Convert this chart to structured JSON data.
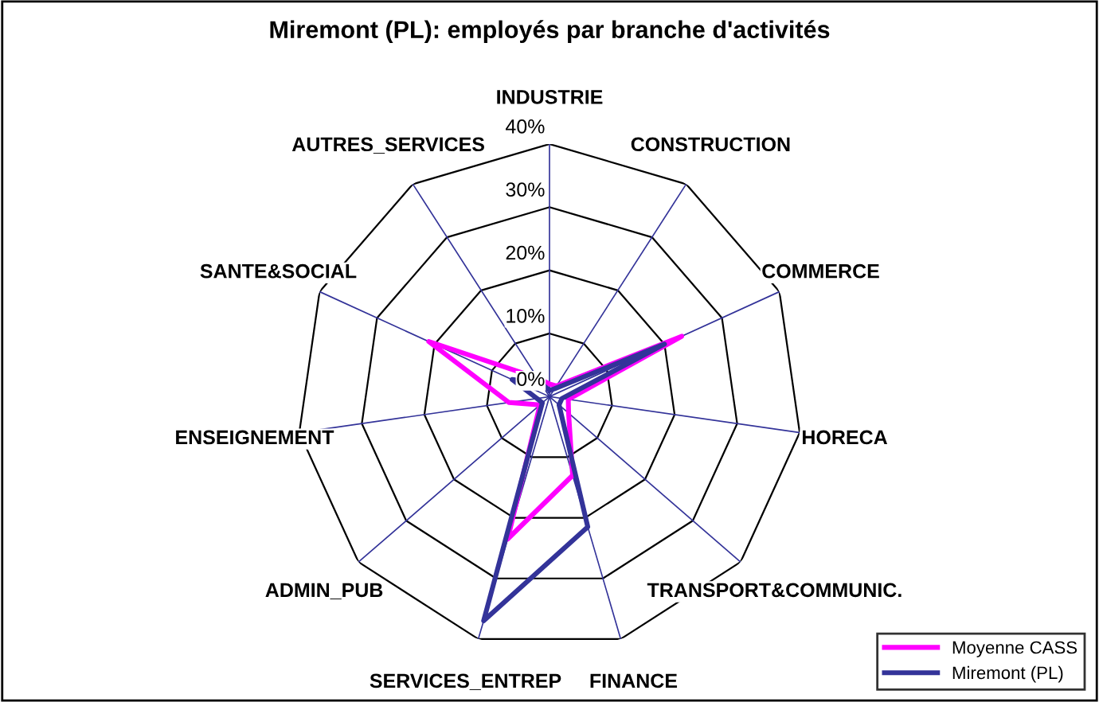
{
  "chart_data": {
    "type": "radar",
    "title": "Miremont (PL): employés par branche d'activités",
    "categories": [
      "INDUSTRIE",
      "CONSTRUCTION",
      "COMMERCE",
      "HORECA",
      "TRANSPORT&COMMUNIC.",
      "FINANCE",
      "SERVICES_ENTREP",
      "ADMIN_PUB",
      "ENSEIGNEMENT",
      "SANTE&SOCIAL",
      "AUTRES_SERVICES"
    ],
    "series": [
      {
        "name": "Moyenne CASS",
        "color": "#ff00ff",
        "values": [
          2,
          2,
          23,
          3,
          4,
          13,
          23.5,
          2,
          6.5,
          21,
          3.5
        ]
      },
      {
        "name": "Miremont (PL)",
        "color": "#333399",
        "values": [
          1,
          1.5,
          20,
          2,
          2,
          21.5,
          37,
          1.5,
          2,
          6.5,
          2.5
        ]
      }
    ],
    "ylim": [
      0,
      40
    ],
    "yticks": [
      {
        "value": 0,
        "label": "0%"
      },
      {
        "value": 10,
        "label": "10%"
      },
      {
        "value": 20,
        "label": "20%"
      },
      {
        "value": 30,
        "label": "30%"
      },
      {
        "value": 40,
        "label": "40%"
      }
    ],
    "grid": true,
    "legend": "bottom right"
  }
}
